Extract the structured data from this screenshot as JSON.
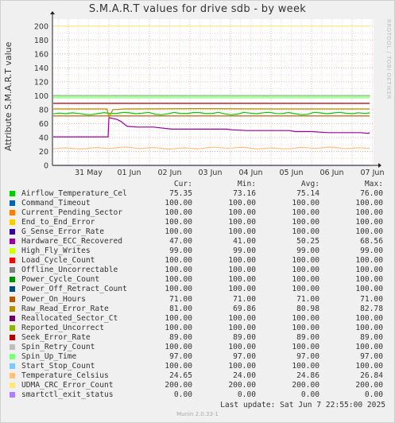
{
  "chart_data": {
    "type": "line",
    "title": "S.M.A.R.T values for drive sdb - by week",
    "ylabel": "Attribute S.M.A.R.T value",
    "ylim": [
      0,
      210
    ],
    "yticks": [
      0,
      20,
      40,
      60,
      80,
      100,
      120,
      140,
      160,
      180,
      200
    ],
    "x_dates": [
      "31 May",
      "01 Jun",
      "02 Jun",
      "03 Jun",
      "04 Jun",
      "05 Jun",
      "06 Jun",
      "07 Jun"
    ],
    "grid": true,
    "legend_columns": [
      "Cur:",
      "Min:",
      "Avg:",
      "Max:"
    ],
    "series": [
      {
        "name": "Airflow_Temperature_Cel",
        "color": "#00cc00",
        "cur": "75.35",
        "min": "73.16",
        "avg": "75.14",
        "max": "76.00"
      },
      {
        "name": "Command_Timeout",
        "color": "#0066b3",
        "cur": "100.00",
        "min": "100.00",
        "avg": "100.00",
        "max": "100.00"
      },
      {
        "name": "Current_Pending_Sector",
        "color": "#ff8000",
        "cur": "100.00",
        "min": "100.00",
        "avg": "100.00",
        "max": "100.00"
      },
      {
        "name": "End_to_End_Error",
        "color": "#ffcc00",
        "cur": "100.00",
        "min": "100.00",
        "avg": "100.00",
        "max": "100.00"
      },
      {
        "name": "G_Sense_Error_Rate",
        "color": "#330099",
        "cur": "100.00",
        "min": "100.00",
        "avg": "100.00",
        "max": "100.00"
      },
      {
        "name": "Hardware_ECC_Recovered",
        "color": "#990099",
        "cur": "47.00",
        "min": "41.00",
        "avg": "50.25",
        "max": "68.56"
      },
      {
        "name": "High_Fly_Writes",
        "color": "#ccff00",
        "cur": "99.00",
        "min": "99.00",
        "avg": "99.00",
        "max": "99.00"
      },
      {
        "name": "Load_Cycle_Count",
        "color": "#ff0000",
        "cur": "100.00",
        "min": "100.00",
        "avg": "100.00",
        "max": "100.00"
      },
      {
        "name": "Offline_Uncorrectable",
        "color": "#808080",
        "cur": "100.00",
        "min": "100.00",
        "avg": "100.00",
        "max": "100.00"
      },
      {
        "name": "Power_Cycle_Count",
        "color": "#008f00",
        "cur": "100.00",
        "min": "100.00",
        "avg": "100.00",
        "max": "100.00"
      },
      {
        "name": "Power_Off_Retract_Count",
        "color": "#00487d",
        "cur": "100.00",
        "min": "100.00",
        "avg": "100.00",
        "max": "100.00"
      },
      {
        "name": "Power_On_Hours",
        "color": "#b35a00",
        "cur": "71.00",
        "min": "71.00",
        "avg": "71.00",
        "max": "71.00"
      },
      {
        "name": "Raw_Read_Error_Rate",
        "color": "#b38f00",
        "cur": "81.00",
        "min": "69.86",
        "avg": "80.98",
        "max": "82.78"
      },
      {
        "name": "Reallocated_Sector_Ct",
        "color": "#6b006b",
        "cur": "100.00",
        "min": "100.00",
        "avg": "100.00",
        "max": "100.00"
      },
      {
        "name": "Reported_Uncorrect",
        "color": "#8fb300",
        "cur": "100.00",
        "min": "100.00",
        "avg": "100.00",
        "max": "100.00"
      },
      {
        "name": "Seek_Error_Rate",
        "color": "#b30000",
        "cur": "89.00",
        "min": "89.00",
        "avg": "89.00",
        "max": "89.00"
      },
      {
        "name": "Spin_Retry_Count",
        "color": "#bebebe",
        "cur": "100.00",
        "min": "100.00",
        "avg": "100.00",
        "max": "100.00"
      },
      {
        "name": "Spin_Up_Time",
        "color": "#80ff80",
        "cur": "97.00",
        "min": "97.00",
        "avg": "97.00",
        "max": "97.00"
      },
      {
        "name": "Start_Stop_Count",
        "color": "#80c9ff",
        "cur": "100.00",
        "min": "100.00",
        "avg": "100.00",
        "max": "100.00"
      },
      {
        "name": "Temperature_Celsius",
        "color": "#ffc080",
        "cur": "24.65",
        "min": "24.00",
        "avg": "24.86",
        "max": "26.84"
      },
      {
        "name": "UDMA_CRC_Error_Count",
        "color": "#ffe680",
        "cur": "200.00",
        "min": "200.00",
        "avg": "200.00",
        "max": "200.00"
      },
      {
        "name": "smartctl_exit_status",
        "color": "#aa80ff",
        "cur": "0.00",
        "min": "0.00",
        "avg": "0.00",
        "max": "0.00"
      }
    ]
  },
  "last_update": "Last update:  Sat Jun  7 22:55:00 2025",
  "watermark": "RRDTOOL / TOBI OETIKER",
  "footer": "Munin 2.0.33-1"
}
